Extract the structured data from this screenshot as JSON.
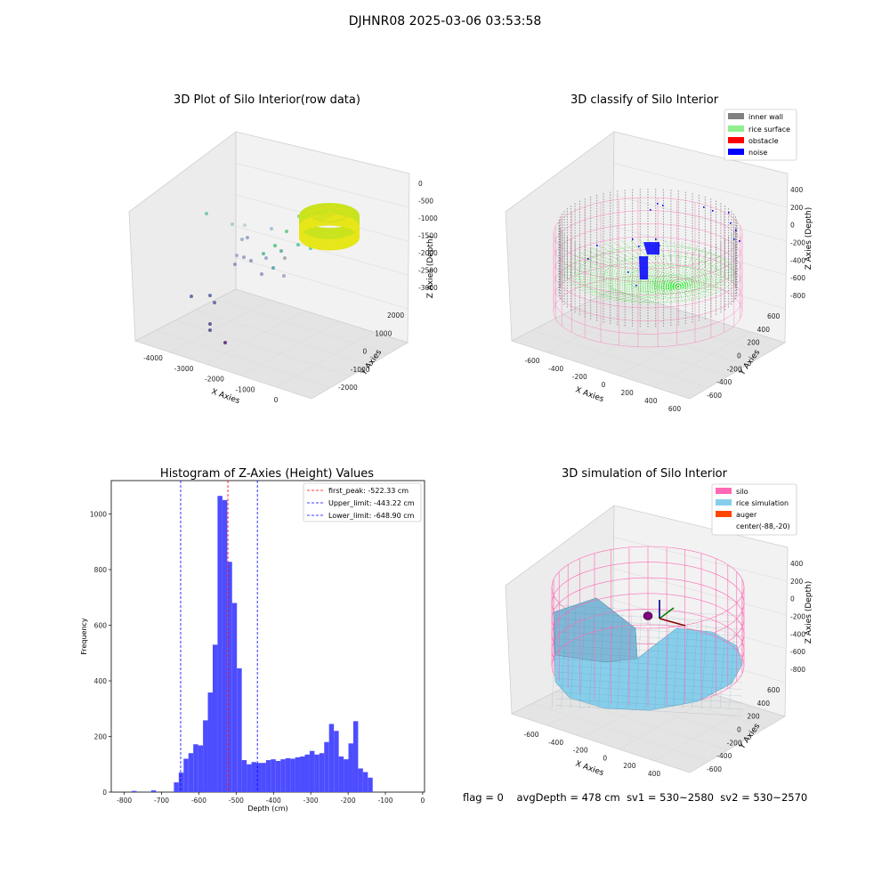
{
  "suptitle": "DJHNR08 2025-03-06 03:53:58",
  "status": {
    "flag": "flag = 0",
    "avg_depth": "avgDepth = 478 cm",
    "sv1": "sv1 = 530~2580",
    "sv2": "sv2 = 530~2570"
  },
  "colors": {
    "histogram_bar": "#4d4dff",
    "first_peak": "#ff0000",
    "limits": "#0000ff",
    "inner_wall": "#808080",
    "rice_surface": "#90ee90",
    "obstacle": "#ff0000",
    "noise": "#0000ff",
    "silo": "#ff69b4",
    "rice_simulation": "#87ceeb",
    "auger": "#ff4500",
    "pane": "#f2f2f2"
  },
  "chart_data": [
    {
      "type": "scatter",
      "title": "3D Plot of Silo Interior(row data)",
      "xlabel": "X Axies",
      "ylabel": "Y Axies",
      "zlabel": "Z Axies (Depth)",
      "x_ticks": [
        "-4000",
        "-3000",
        "-2000",
        "-1000",
        "0"
      ],
      "y_ticks": [
        "-2000",
        "-1000",
        "0",
        "1000",
        "2000"
      ],
      "z_ticks": [
        "0",
        "-500",
        "-1000",
        "-1500",
        "-2000",
        "-2500",
        "-3000"
      ],
      "colormap": "viridis"
    },
    {
      "type": "scatter",
      "title": "3D classify of Silo Interior",
      "xlabel": "X Axies",
      "ylabel": "Y Axies",
      "zlabel": "Z Axies (Depth)",
      "x_ticks": [
        "-600",
        "-400",
        "-200",
        "0",
        "200",
        "400",
        "600"
      ],
      "y_ticks": [
        "-600",
        "-400",
        "-200",
        "0",
        "200",
        "400",
        "600"
      ],
      "z_ticks": [
        "400",
        "200",
        "0",
        "-200",
        "-400",
        "-600",
        "-800"
      ],
      "legend": [
        "inner wall",
        "rice surface",
        "obstacle",
        "noise"
      ],
      "legend_position": "top-right"
    },
    {
      "type": "bar",
      "title": "Histogram of Z-Axies (Height) Values",
      "xlabel": "Depth (cm)",
      "ylabel": "Frequency",
      "xlim": [
        -835,
        5
      ],
      "ylim": [
        0,
        1120
      ],
      "x_ticks": [
        -800,
        -700,
        -600,
        -500,
        -400,
        -300,
        -200,
        -100,
        0
      ],
      "y_ticks": [
        0,
        200,
        400,
        600,
        800,
        1000
      ],
      "bin_width": 13,
      "bin_start": -667,
      "values": [
        35,
        70,
        120,
        140,
        172,
        168,
        258,
        358,
        530,
        1065,
        1050,
        828,
        680,
        445,
        115,
        100,
        108,
        105,
        105,
        115,
        118,
        112,
        118,
        122,
        120,
        125,
        128,
        135,
        148,
        135,
        140,
        180,
        245,
        220,
        128,
        118,
        175,
        255,
        85,
        72,
        52
      ],
      "low_bins": [
        {
          "x": -780,
          "y": 1
        },
        {
          "x": -728,
          "y": 3
        }
      ],
      "lines": [
        {
          "label": "first_peak: -522.33 cm",
          "x": -522.33,
          "color": "#ff0000"
        },
        {
          "label": "Upper_limit: -443.22 cm",
          "x": -443.22,
          "color": "#0000ff"
        },
        {
          "label": "Lower_limit: -648.90 cm",
          "x": -648.9,
          "color": "#0000ff"
        }
      ],
      "legend_position": "top-right"
    },
    {
      "type": "scatter",
      "title": "3D simulation of Silo Interior",
      "xlabel": "X Axies",
      "ylabel": "Y Axies",
      "zlabel": "Z Axies (Depth)",
      "x_ticks": [
        "-600",
        "-400",
        "-200",
        "0",
        "200",
        "400"
      ],
      "y_ticks": [
        "-600",
        "-400",
        "-200",
        "0",
        "200",
        "400",
        "600"
      ],
      "z_ticks": [
        "400",
        "200",
        "0",
        "-200",
        "-400",
        "-600",
        "-800"
      ],
      "legend": [
        "silo",
        "rice simulation",
        "auger",
        "center(-88,-20)"
      ],
      "legend_position": "top-right"
    }
  ]
}
